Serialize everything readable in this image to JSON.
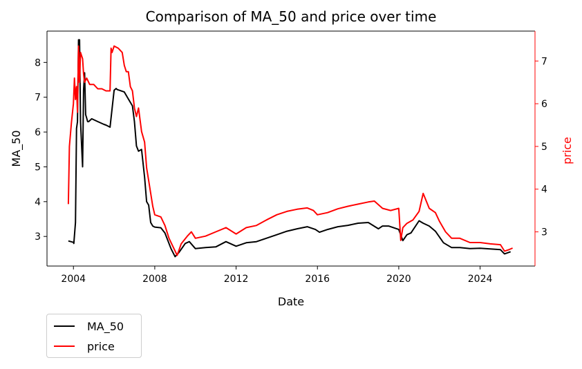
{
  "chart_data": {
    "type": "line",
    "title": "Comparison of MA_50 and price over time",
    "xlabel": "Date",
    "ylabel_left": "MA_50",
    "ylabel_right": "price",
    "xlim": [
      2002.7,
      2026.7
    ],
    "ylim_left": [
      2.15,
      8.9
    ],
    "ylim_right": [
      2.2,
      7.7
    ],
    "x_ticks": [
      2004,
      2008,
      2012,
      2016,
      2020,
      2024
    ],
    "y_ticks_left": [
      3,
      4,
      5,
      6,
      7,
      8
    ],
    "y_ticks_right": [
      3,
      4,
      5,
      6,
      7
    ],
    "legend_position": "below-left",
    "colors": {
      "MA_50": "#000000",
      "price": "#ff0000",
      "right_axis": "#ff0000"
    },
    "series": [
      {
        "name": "MA_50",
        "axis": "left",
        "x": [
          2003.75,
          2004.0,
          2004.02,
          2004.1,
          2004.15,
          2004.2,
          2004.25,
          2004.3,
          2004.35,
          2004.45,
          2004.5,
          2004.55,
          2004.6,
          2004.65,
          2004.7,
          2004.75,
          2004.9,
          2005.2,
          2005.5,
          2005.6,
          2005.8,
          2006.0,
          2006.1,
          2006.15,
          2006.5,
          2006.7,
          2006.9,
          2007.0,
          2007.1,
          2007.2,
          2007.35,
          2007.5,
          2007.6,
          2007.7,
          2007.8,
          2007.9,
          2008.0,
          2008.3,
          2008.5,
          2008.8,
          2009.0,
          2009.2,
          2009.5,
          2009.7,
          2010.0,
          2010.5,
          2011.0,
          2011.5,
          2012.0,
          2012.5,
          2013.0,
          2013.5,
          2014.0,
          2014.5,
          2015.0,
          2015.5,
          2015.9,
          2016.1,
          2016.5,
          2017.0,
          2017.5,
          2018.0,
          2018.5,
          2019.0,
          2019.2,
          2019.5,
          2020.0,
          2020.2,
          2020.4,
          2020.6,
          2021.0,
          2021.2,
          2021.5,
          2021.8,
          2022.2,
          2022.6,
          2023.0,
          2023.5,
          2024.0,
          2024.5,
          2025.0,
          2025.2,
          2025.5
        ],
        "values": [
          2.87,
          2.83,
          2.8,
          3.4,
          6.1,
          6.3,
          8.65,
          8.65,
          6.3,
          5.0,
          7.2,
          7.7,
          6.5,
          6.4,
          6.3,
          6.3,
          6.38,
          6.3,
          6.22,
          6.2,
          6.14,
          7.2,
          7.25,
          7.22,
          7.15,
          6.95,
          6.75,
          6.3,
          5.6,
          5.45,
          5.5,
          4.7,
          4.0,
          3.9,
          3.4,
          3.3,
          3.27,
          3.25,
          3.1,
          2.65,
          2.42,
          2.55,
          2.8,
          2.85,
          2.65,
          2.68,
          2.7,
          2.85,
          2.72,
          2.82,
          2.85,
          2.95,
          3.05,
          3.15,
          3.22,
          3.28,
          3.2,
          3.12,
          3.2,
          3.28,
          3.32,
          3.38,
          3.4,
          3.22,
          3.3,
          3.3,
          3.2,
          2.88,
          3.05,
          3.1,
          3.45,
          3.38,
          3.3,
          3.15,
          2.82,
          2.68,
          2.68,
          2.65,
          2.66,
          2.64,
          2.62,
          2.5,
          2.56
        ]
      },
      {
        "name": "price",
        "axis": "right",
        "x": [
          2003.75,
          2003.8,
          2003.9,
          2004.0,
          2004.05,
          2004.1,
          2004.15,
          2004.2,
          2004.25,
          2004.3,
          2004.35,
          2004.45,
          2004.5,
          2004.55,
          2004.65,
          2004.8,
          2005.0,
          2005.2,
          2005.4,
          2005.6,
          2005.8,
          2005.85,
          2005.9,
          2006.0,
          2006.2,
          2006.4,
          2006.5,
          2006.6,
          2006.7,
          2006.8,
          2006.9,
          2007.0,
          2007.1,
          2007.2,
          2007.35,
          2007.5,
          2007.6,
          2007.7,
          2007.9,
          2008.0,
          2008.3,
          2008.5,
          2008.7,
          2008.9,
          2009.1,
          2009.3,
          2009.6,
          2009.8,
          2010.0,
          2010.5,
          2011.0,
          2011.5,
          2012.0,
          2012.5,
          2013.0,
          2013.5,
          2014.0,
          2014.5,
          2015.0,
          2015.5,
          2015.8,
          2016.0,
          2016.5,
          2017.0,
          2017.5,
          2018.0,
          2018.5,
          2018.8,
          2019.2,
          2019.6,
          2020.0,
          2020.1,
          2020.2,
          2020.4,
          2020.7,
          2021.0,
          2021.2,
          2021.5,
          2021.8,
          2022.0,
          2022.3,
          2022.6,
          2023.0,
          2023.5,
          2024.0,
          2024.5,
          2025.0,
          2025.2,
          2025.4,
          2025.6
        ],
        "values": [
          3.65,
          5.0,
          5.55,
          6.0,
          6.6,
          6.1,
          6.4,
          5.8,
          7.35,
          6.5,
          7.2,
          7.05,
          6.7,
          6.5,
          6.6,
          6.45,
          6.45,
          6.35,
          6.35,
          6.3,
          6.3,
          7.3,
          7.2,
          7.35,
          7.3,
          7.2,
          6.9,
          6.75,
          6.75,
          6.4,
          6.3,
          5.9,
          5.7,
          5.9,
          5.35,
          5.1,
          4.5,
          4.2,
          3.6,
          3.4,
          3.35,
          3.15,
          2.85,
          2.65,
          2.45,
          2.72,
          2.9,
          3.0,
          2.85,
          2.9,
          3.0,
          3.1,
          2.95,
          3.1,
          3.15,
          3.28,
          3.4,
          3.48,
          3.53,
          3.56,
          3.5,
          3.4,
          3.45,
          3.54,
          3.6,
          3.65,
          3.7,
          3.72,
          3.55,
          3.5,
          3.55,
          2.8,
          3.1,
          3.2,
          3.28,
          3.48,
          3.9,
          3.55,
          3.45,
          3.25,
          3.0,
          2.85,
          2.85,
          2.75,
          2.75,
          2.72,
          2.7,
          2.55,
          2.58,
          2.62
        ]
      }
    ]
  }
}
